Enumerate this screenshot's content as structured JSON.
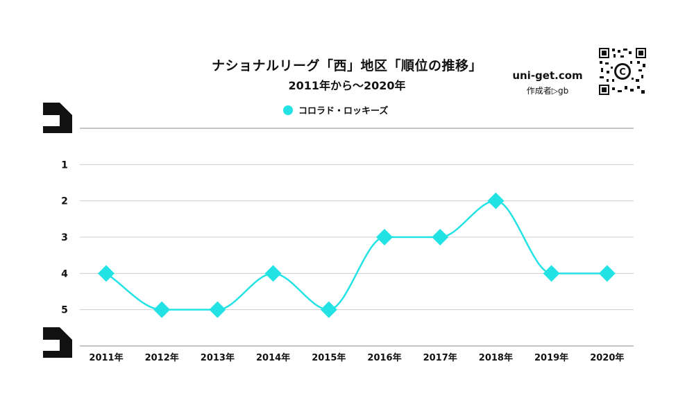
{
  "header": {
    "title": "ナショナルリーグ「西」地区「順位の推移」",
    "subtitle": "2011年から～2020年"
  },
  "site": {
    "url": "uni-get.com",
    "author": "作成者▷gb"
  },
  "icons": {
    "qr": "qr-code-icon",
    "brackets": "corner-bracket-icon"
  },
  "colors": {
    "series": "#22E2E4",
    "grid": "#CCCCCC",
    "text": "#111111"
  },
  "chart_data": {
    "type": "line",
    "title": "ナショナルリーグ「西」地区「順位の推移」",
    "subtitle": "2011年から～2020年",
    "categories": [
      "2011年",
      "2012年",
      "2013年",
      "2014年",
      "2015年",
      "2016年",
      "2017年",
      "2018年",
      "2019年",
      "2020年"
    ],
    "series": [
      {
        "name": "コロラド・ロッキーズ",
        "values": [
          4,
          5,
          5,
          4,
          5,
          3,
          3,
          2,
          4,
          4
        ],
        "color": "#22E2E4",
        "marker": "diamond"
      }
    ],
    "yticks": [
      1,
      2,
      3,
      4,
      5
    ],
    "ylim": [
      0,
      6
    ],
    "y_inverted": true,
    "smooth": true,
    "grid": true,
    "legend": "top-center"
  }
}
